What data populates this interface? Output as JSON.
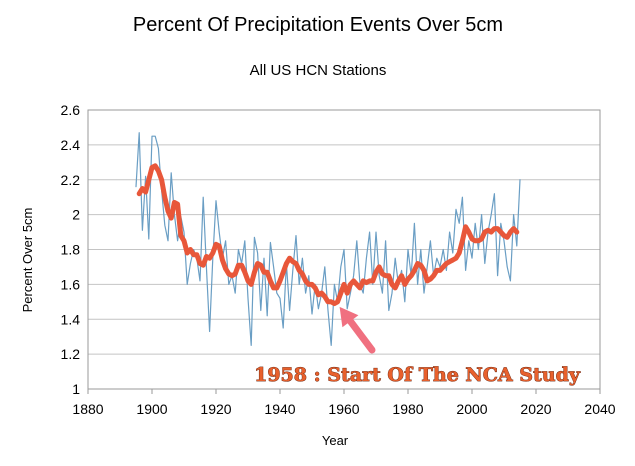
{
  "chart_data": {
    "type": "line",
    "title": "Percent Of Precipitation Events Over 5cm",
    "subtitle": "All US HCN Stations",
    "xlabel": "Year",
    "ylabel": "Percent Over 5cm",
    "xlim": [
      1880,
      2040
    ],
    "ylim": [
      1,
      2.6
    ],
    "xticks": [
      1880,
      1900,
      1920,
      1940,
      1960,
      1980,
      2000,
      2020,
      2040
    ],
    "yticks": [
      1,
      1.2,
      1.4,
      1.6,
      1.8,
      2,
      2.2,
      2.4,
      2.6
    ],
    "xtick_labels": [
      "1880",
      "1900",
      "1920",
      "1940",
      "1960",
      "1980",
      "2000",
      "2020",
      "2040"
    ],
    "ytick_labels": [
      "1",
      "1.2",
      "1.4",
      "1.6",
      "1.8",
      "2",
      "2.2",
      "2.4",
      "2.6"
    ],
    "grid": "horizontal",
    "series": [
      {
        "color": "#6a9ec4",
        "x": [
          1895,
          1896,
          1897,
          1898,
          1899,
          1900,
          1901,
          1902,
          1903,
          1904,
          1905,
          1906,
          1907,
          1908,
          1909,
          1910,
          1911,
          1912,
          1913,
          1914,
          1915,
          1916,
          1917,
          1918,
          1919,
          1920,
          1921,
          1922,
          1923,
          1924,
          1925,
          1926,
          1927,
          1928,
          1929,
          1930,
          1931,
          1932,
          1933,
          1934,
          1935,
          1936,
          1937,
          1938,
          1939,
          1940,
          1941,
          1942,
          1943,
          1944,
          1945,
          1946,
          1947,
          1948,
          1949,
          1950,
          1951,
          1952,
          1953,
          1954,
          1955,
          1956,
          1957,
          1958,
          1959,
          1960,
          1961,
          1962,
          1963,
          1964,
          1965,
          1966,
          1967,
          1968,
          1969,
          1970,
          1971,
          1972,
          1973,
          1974,
          1975,
          1976,
          1977,
          1978,
          1979,
          1980,
          1981,
          1982,
          1983,
          1984,
          1985,
          1986,
          1987,
          1988,
          1989,
          1990,
          1991,
          1992,
          1993,
          1994,
          1995,
          1996,
          1997,
          1998,
          1999,
          2000,
          2001,
          2002,
          2003,
          2004,
          2005,
          2006,
          2007,
          2008,
          2009,
          2010,
          2011,
          2012,
          2013,
          2014,
          2015
        ],
        "y": [
          2.16,
          2.47,
          1.91,
          2.22,
          1.86,
          2.45,
          2.45,
          2.38,
          2.14,
          1.94,
          1.85,
          2.24,
          2.0,
          1.85,
          1.99,
          1.9,
          1.6,
          1.72,
          1.8,
          1.75,
          1.62,
          2.1,
          1.7,
          1.33,
          1.75,
          2.08,
          1.9,
          1.75,
          1.85,
          1.6,
          1.65,
          1.55,
          1.8,
          1.72,
          1.85,
          1.52,
          1.25,
          1.87,
          1.78,
          1.45,
          1.75,
          1.42,
          1.84,
          1.7,
          1.55,
          1.52,
          1.35,
          1.72,
          1.45,
          1.68,
          1.88,
          1.6,
          1.75,
          1.55,
          1.65,
          1.43,
          1.6,
          1.46,
          1.55,
          1.7,
          1.45,
          1.25,
          1.6,
          1.5,
          1.7,
          1.8,
          1.46,
          1.55,
          1.65,
          1.85,
          1.6,
          1.55,
          1.75,
          1.9,
          1.6,
          1.9,
          1.65,
          1.55,
          1.85,
          1.45,
          1.55,
          1.75,
          1.6,
          1.68,
          1.5,
          1.8,
          1.65,
          1.95,
          1.6,
          1.8,
          1.55,
          1.7,
          1.85,
          1.65,
          1.75,
          1.7,
          1.8,
          1.68,
          1.9,
          1.78,
          2.03,
          1.95,
          2.1,
          1.68,
          1.85,
          1.75,
          1.95,
          1.8,
          2.0,
          1.72,
          1.9,
          2.0,
          2.12,
          1.65,
          1.95,
          1.85,
          1.7,
          1.62,
          2.0,
          1.82,
          2.2
        ]
      },
      {
        "color": "#e8573a",
        "x": [
          1896,
          1897,
          1898,
          1899,
          1900,
          1901,
          1902,
          1903,
          1904,
          1905,
          1906,
          1907,
          1908,
          1909,
          1910,
          1911,
          1912,
          1913,
          1914,
          1915,
          1916,
          1917,
          1918,
          1919,
          1920,
          1921,
          1922,
          1923,
          1924,
          1925,
          1926,
          1927,
          1928,
          1929,
          1930,
          1931,
          1932,
          1933,
          1934,
          1935,
          1936,
          1937,
          1938,
          1939,
          1940,
          1941,
          1942,
          1943,
          1944,
          1945,
          1946,
          1947,
          1948,
          1949,
          1950,
          1951,
          1952,
          1953,
          1954,
          1955,
          1956,
          1957,
          1958,
          1959,
          1960,
          1961,
          1962,
          1963,
          1964,
          1965,
          1966,
          1967,
          1968,
          1969,
          1970,
          1971,
          1972,
          1973,
          1974,
          1975,
          1976,
          1977,
          1978,
          1979,
          1980,
          1981,
          1982,
          1983,
          1984,
          1985,
          1986,
          1987,
          1988,
          1989,
          1990,
          1991,
          1992,
          1993,
          1994,
          1995,
          1996,
          1997,
          1998,
          1999,
          2000,
          2001,
          2002,
          2003,
          2004,
          2005,
          2006,
          2007,
          2008,
          2009,
          2010,
          2011,
          2012,
          2013,
          2014
        ],
        "y": [
          2.12,
          2.15,
          2.13,
          2.2,
          2.27,
          2.28,
          2.25,
          2.2,
          2.1,
          2.02,
          1.98,
          2.07,
          2.06,
          1.88,
          1.85,
          1.78,
          1.8,
          1.77,
          1.77,
          1.72,
          1.71,
          1.76,
          1.75,
          1.78,
          1.83,
          1.82,
          1.74,
          1.69,
          1.66,
          1.65,
          1.66,
          1.71,
          1.71,
          1.67,
          1.62,
          1.6,
          1.67,
          1.72,
          1.71,
          1.67,
          1.67,
          1.62,
          1.58,
          1.58,
          1.62,
          1.67,
          1.72,
          1.75,
          1.73,
          1.72,
          1.68,
          1.66,
          1.62,
          1.6,
          1.6,
          1.58,
          1.54,
          1.55,
          1.53,
          1.5,
          1.5,
          1.49,
          1.5,
          1.55,
          1.6,
          1.55,
          1.6,
          1.62,
          1.6,
          1.58,
          1.62,
          1.61,
          1.62,
          1.62,
          1.67,
          1.7,
          1.66,
          1.65,
          1.65,
          1.6,
          1.58,
          1.62,
          1.65,
          1.6,
          1.63,
          1.65,
          1.68,
          1.72,
          1.71,
          1.68,
          1.62,
          1.63,
          1.65,
          1.68,
          1.68,
          1.7,
          1.72,
          1.73,
          1.74,
          1.75,
          1.78,
          1.85,
          1.93,
          1.9,
          1.86,
          1.85,
          1.85,
          1.86,
          1.9,
          1.91,
          1.9,
          1.92,
          1.92,
          1.9,
          1.88,
          1.87,
          1.9,
          1.92,
          1.9
        ]
      }
    ],
    "annotation": {
      "text": "1958 : Start Of The NCA Study",
      "arrow_to": [
        1958,
        1.5
      ],
      "color": "#e8602c"
    }
  }
}
